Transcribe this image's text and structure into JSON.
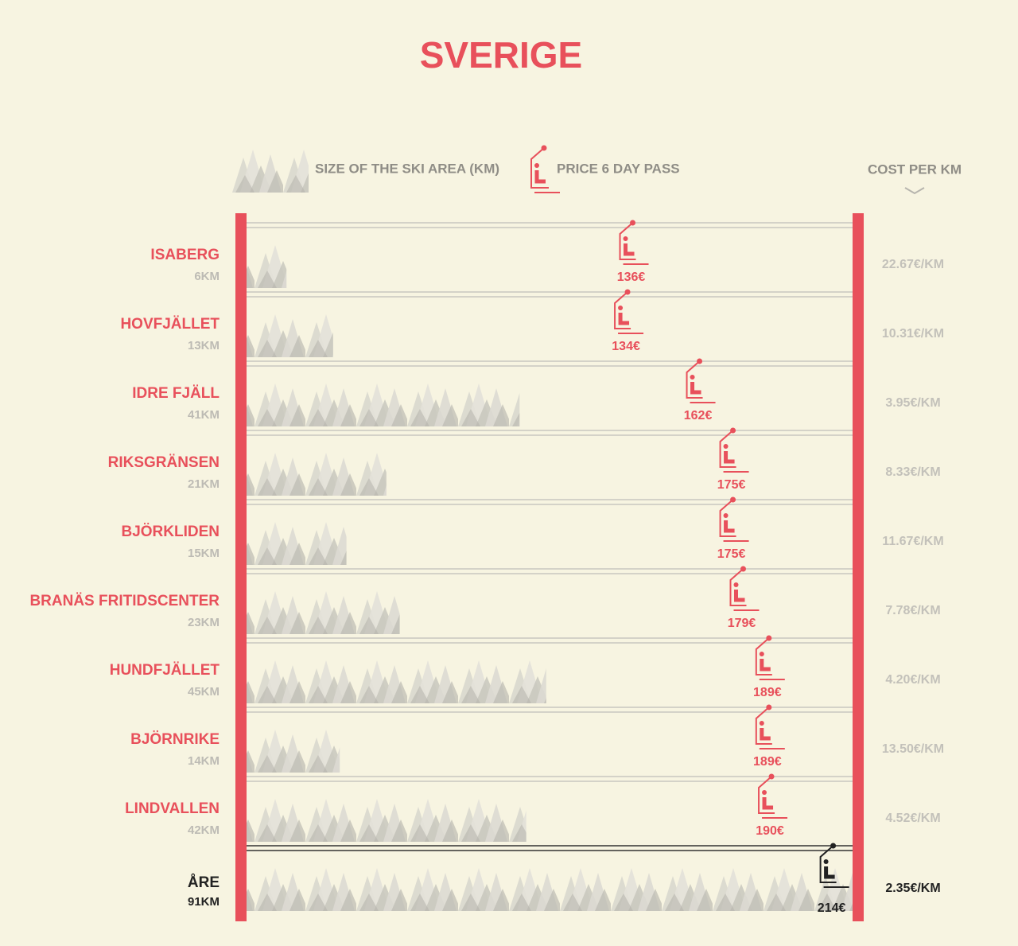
{
  "chart_data": {
    "type": "ski-lift",
    "title": "SVERIGE",
    "categories": [
      "ISABERG",
      "HOVFJÄLLET",
      "IDRE FJÄLL",
      "RIKSGRÄNSEN",
      "BJÖRKLIDEN",
      "BRANÄS FRITIDSCENTER",
      "HUNDFJÄLLET",
      "BJÖRNRIKE",
      "LINDVALLEN",
      "ÅRE"
    ],
    "highlight_category": "ÅRE",
    "color": "#e8505b",
    "highlight_color": "#222222",
    "series": [
      {
        "name": "SIZE OF THE SKI AREA (KM)",
        "color": "#c9c7c0",
        "values": [
          6,
          13,
          41,
          21,
          15,
          23,
          45,
          14,
          42,
          91
        ],
        "value_labels": [
          "6KM",
          "13KM",
          "41KM",
          "21KM",
          "15KM",
          "23KM",
          "45KM",
          "14KM",
          "42KM",
          "91KM"
        ]
      },
      {
        "name": "PRICE 6 DAY PASS",
        "color": "#e8505b",
        "axis": "x2",
        "values": [
          136,
          134,
          162,
          175,
          175,
          179,
          189,
          189,
          190,
          214
        ],
        "value_labels": [
          "136€",
          "134€",
          "162€",
          "175€",
          "175€",
          "179€",
          "189€",
          "189€",
          "190€",
          "214€"
        ]
      },
      {
        "name": "COST PER KM",
        "color": "#c3c1ba",
        "values": [
          22.67,
          10.31,
          3.95,
          8.33,
          11.67,
          7.78,
          4.2,
          13.5,
          4.52,
          2.35
        ],
        "value_labels": [
          "22.67€/KM",
          "10.31€/KM",
          "3.95€/KM",
          "8.33€/KM",
          "11.67€/KM",
          "7.78€/KM",
          "4.20€/KM",
          "13.50€/KM",
          "4.52€/KM",
          "2.35€/KM"
        ]
      }
    ],
    "xlim": [
      0,
      91
    ],
    "x2lim": [
      0,
      220
    ]
  }
}
